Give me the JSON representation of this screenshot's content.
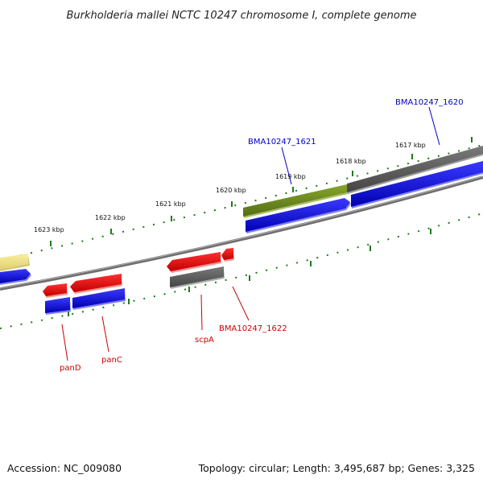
{
  "title": "Burkholderia mallei NCTC 10247 chromosome I, complete genome",
  "footer": {
    "accession": "Accession: NC_009080",
    "summary": "Topology: circular; Length: 3,495,687 bp; Genes: 3,325"
  },
  "colors": {
    "backbone": "#808080",
    "ticks": "#1f7a1f",
    "cds": "#0000e6",
    "gene_forward": "#606060",
    "gene_reverse": "#ee0000",
    "feature_olive": "#6b8a1e",
    "feature_yellow": "#f0e68c",
    "label_forward": "#0000cc",
    "label_reverse": "#cc0000"
  },
  "tick_labels": {
    "k1617": "1617 kbp",
    "k1618": "1618 kbp",
    "k1619": "1619 kbp",
    "k1620": "1620 kbp",
    "k1621": "1621 kbp",
    "k1622": "1622 kbp",
    "k1623": "1623 kbp"
  },
  "gene_labels": {
    "bma1620": "BMA10247_1620",
    "bma1621": "BMA10247_1621",
    "bma1622": "BMA10247_1622",
    "scpA": "scpA",
    "panC": "panC",
    "panD": "panD"
  }
}
